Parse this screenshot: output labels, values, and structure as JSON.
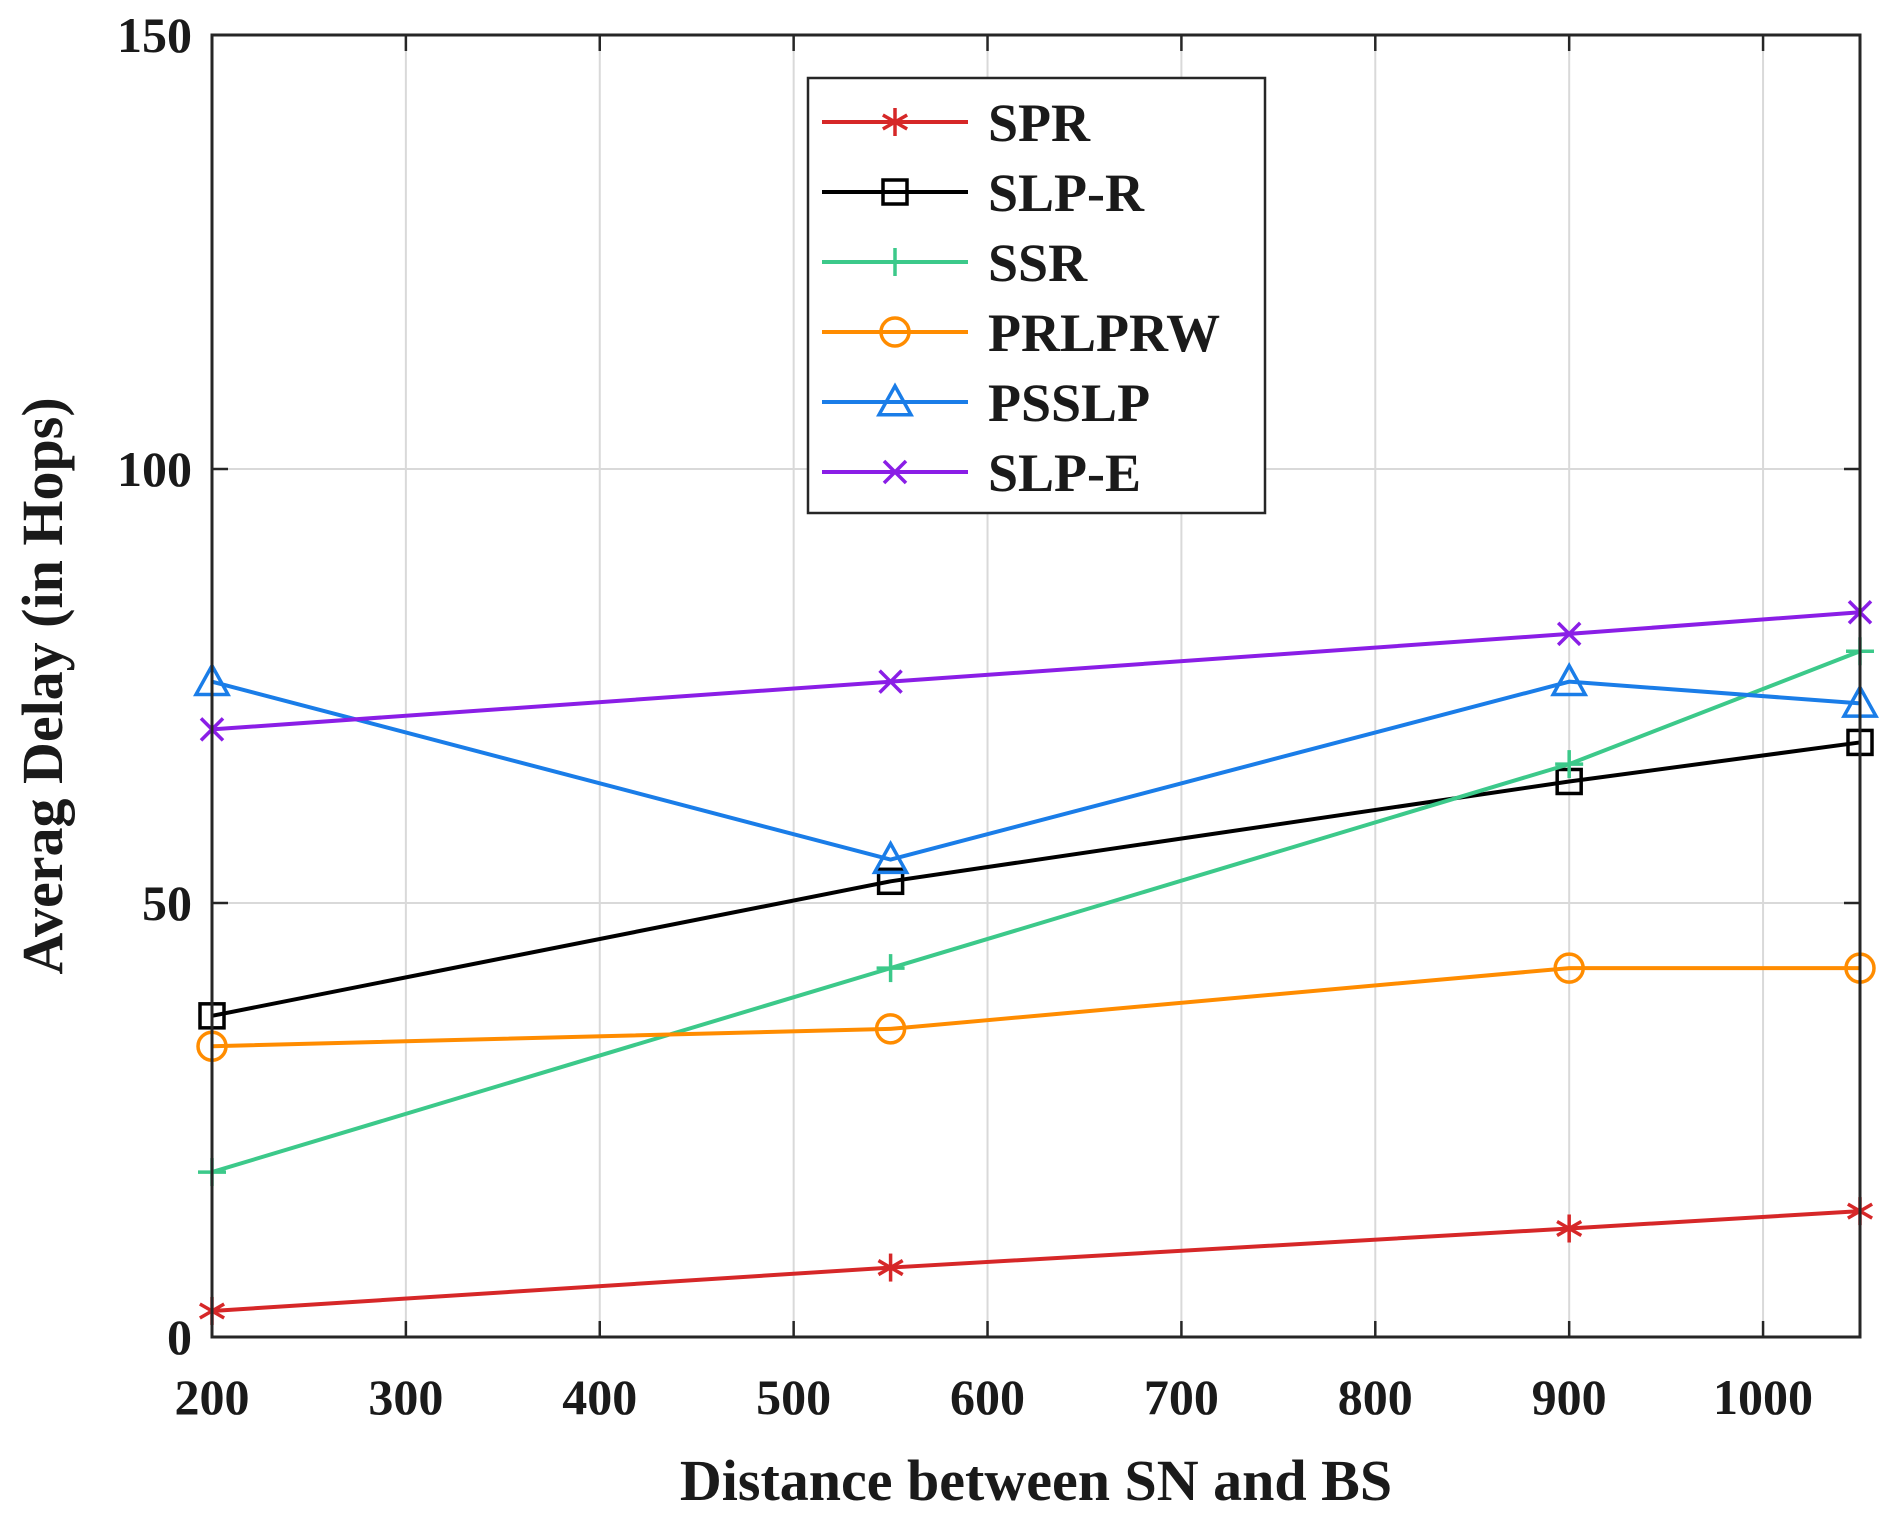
{
  "chart_data": {
    "type": "line",
    "title": "",
    "xlabel": "Distance between SN and BS",
    "ylabel": "Averag Delay (in Hops)",
    "xlim": [
      200,
      1050
    ],
    "ylim": [
      0,
      150
    ],
    "xticks": [
      200,
      300,
      400,
      500,
      600,
      700,
      800,
      900,
      1000
    ],
    "yticks": [
      0,
      50,
      100,
      150
    ],
    "grid": true,
    "legend_position": "top-center",
    "x": [
      200,
      550,
      900,
      1050
    ],
    "series": [
      {
        "name": "SPR",
        "color": "#d62728",
        "marker": "asterisk",
        "values": [
          3,
          8,
          12.5,
          14.5
        ]
      },
      {
        "name": "SLP-R",
        "color": "#000000",
        "marker": "square",
        "values": [
          37,
          52.5,
          64,
          68.5
        ]
      },
      {
        "name": "SSR",
        "color": "#3cc98a",
        "marker": "plus",
        "values": [
          19,
          42.5,
          66,
          79
        ]
      },
      {
        "name": "PRLPRW",
        "color": "#ff8c00",
        "marker": "circle",
        "values": [
          33.5,
          35.5,
          42.5,
          42.5
        ]
      },
      {
        "name": "PSSLP",
        "color": "#1a7de8",
        "marker": "triangle",
        "values": [
          75.5,
          55,
          75.5,
          73
        ]
      },
      {
        "name": "SLP-E",
        "color": "#8a1ee6",
        "marker": "x",
        "values": [
          70,
          75.5,
          81,
          83.5
        ]
      }
    ]
  }
}
